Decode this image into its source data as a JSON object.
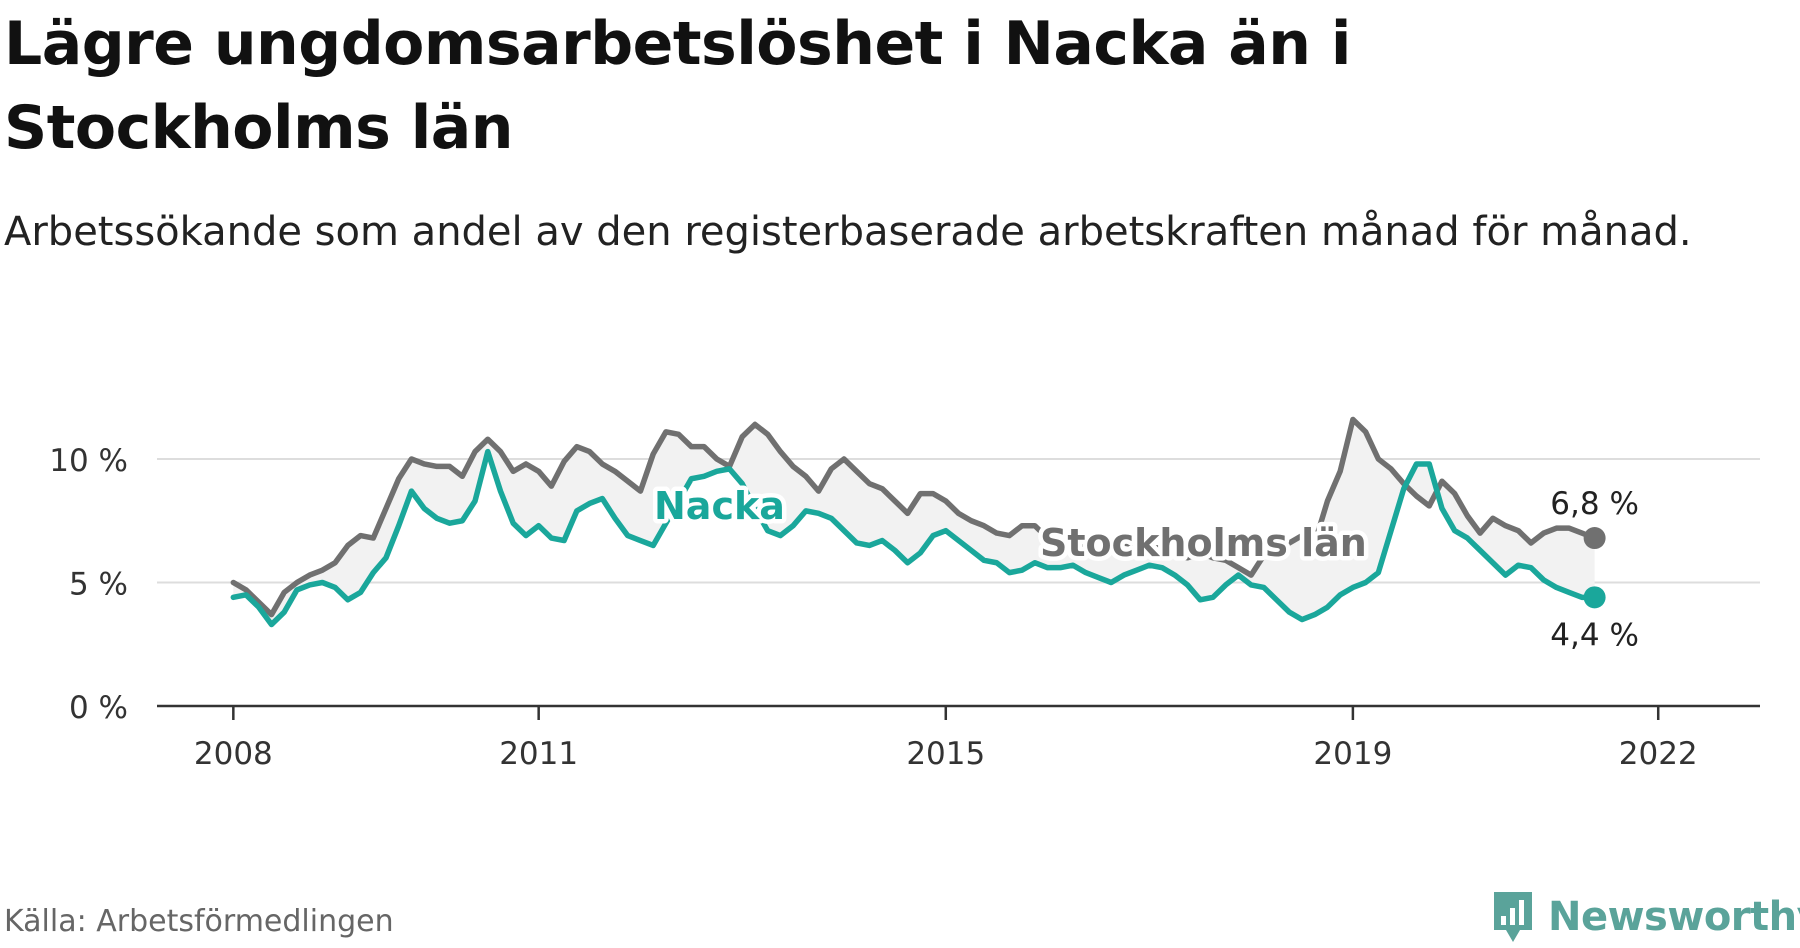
{
  "title": "Lägre ungdomsarbetslöshet i Nacka än i Stockholms län",
  "subtitle": "Arbetssökande som andel av den registerbaserade arbetskraften månad för månad.",
  "source": "Källa: Arbetsförmedlingen",
  "brand": "Newsworthy",
  "colors": {
    "nacka": "#1aa79b",
    "lan": "#707070",
    "band": "#f2f2f2",
    "grid": "#dddddd",
    "axis": "#333333"
  },
  "chart_data": {
    "type": "line",
    "title": "Lägre ungdomsarbetslöshet i Nacka än i Stockholms län",
    "xlabel": "",
    "ylabel": "",
    "x_ticks": [
      2008,
      2011,
      2015,
      2019,
      2022
    ],
    "x_range": [
      2007.25,
      2023.0
    ],
    "y_ticks": [
      "0 %",
      "5 %",
      "10 %"
    ],
    "y_tick_values": [
      0,
      5,
      10
    ],
    "ylim": [
      0,
      12
    ],
    "x_start": 2008.0,
    "x_step": 0.125,
    "series": [
      {
        "name": "Stockholms län",
        "label": "Stockholms län",
        "end_label": "6,8 %",
        "color": "#707070",
        "values": [
          5.0,
          4.7,
          4.2,
          3.7,
          4.6,
          5.0,
          5.3,
          5.5,
          5.8,
          6.5,
          6.9,
          6.8,
          8.0,
          9.2,
          10.0,
          9.8,
          9.7,
          9.7,
          9.3,
          10.3,
          10.8,
          10.3,
          9.5,
          9.8,
          9.5,
          8.9,
          9.9,
          10.5,
          10.3,
          9.8,
          9.5,
          9.1,
          8.7,
          10.2,
          11.1,
          11.0,
          10.5,
          10.5,
          10.0,
          9.7,
          10.9,
          11.4,
          11.0,
          10.3,
          9.7,
          9.3,
          8.7,
          9.6,
          10.0,
          9.5,
          9.0,
          8.8,
          8.3,
          7.8,
          8.6,
          8.6,
          8.3,
          7.8,
          7.5,
          7.3,
          7.0,
          6.9,
          7.3,
          7.3,
          6.8,
          6.8,
          6.5,
          6.5,
          6.6,
          6.4,
          6.6,
          6.5,
          6.4,
          6.4,
          6.1,
          6.0,
          6.2,
          6.0,
          5.9,
          5.6,
          5.3,
          6.1,
          6.7,
          6.6,
          6.9,
          6.6,
          8.3,
          9.5,
          11.6,
          11.1,
          10.0,
          9.6,
          9.0,
          8.5,
          8.1,
          9.1,
          8.6,
          7.7,
          7.0,
          7.6,
          7.3,
          7.1,
          6.6,
          7.0,
          7.2,
          7.2,
          7.0,
          6.8
        ]
      },
      {
        "name": "Nacka",
        "label": "Nacka",
        "end_label": "4,4 %",
        "color": "#1aa79b",
        "values": [
          4.4,
          4.5,
          4.0,
          3.3,
          3.8,
          4.7,
          4.9,
          5.0,
          4.8,
          4.3,
          4.6,
          5.4,
          6.0,
          7.3,
          8.7,
          8.0,
          7.6,
          7.4,
          7.5,
          8.3,
          10.3,
          8.7,
          7.4,
          6.9,
          7.3,
          6.8,
          6.7,
          7.9,
          8.2,
          8.4,
          7.6,
          6.9,
          6.7,
          6.5,
          7.4,
          8.3,
          9.2,
          9.3,
          9.5,
          9.6,
          9.0,
          8.0,
          7.1,
          6.9,
          7.3,
          7.9,
          7.8,
          7.6,
          7.1,
          6.6,
          6.5,
          6.7,
          6.3,
          5.8,
          6.2,
          6.9,
          7.1,
          6.7,
          6.3,
          5.9,
          5.8,
          5.4,
          5.5,
          5.8,
          5.6,
          5.6,
          5.7,
          5.4,
          5.2,
          5.0,
          5.3,
          5.5,
          5.7,
          5.6,
          5.3,
          4.9,
          4.3,
          4.4,
          4.9,
          5.3,
          4.9,
          4.8,
          4.3,
          3.8,
          3.5,
          3.7,
          4.0,
          4.5,
          4.8,
          5.0,
          5.4,
          7.1,
          8.8,
          9.8,
          9.8,
          8.0,
          7.1,
          6.8,
          6.3,
          5.8,
          5.3,
          5.7,
          5.6,
          5.1,
          4.8,
          4.6,
          4.4,
          4.4
        ]
      }
    ],
    "legend": "inline"
  }
}
